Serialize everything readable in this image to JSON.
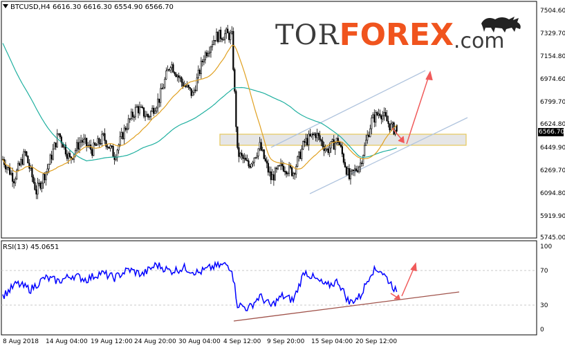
{
  "header": {
    "symbol_info": "BTCUSD,H4  6616.30 6616.30 6554.90 6566.70",
    "rsi_info": "RSI(13) 45.0651"
  },
  "logo": {
    "part1": "TOR",
    "part2": "FOREX",
    "part3": ".com"
  },
  "price_axis": {
    "labels": [
      "7504.60",
      "7329.70",
      "7154.80",
      "6974.60",
      "6799.70",
      "6624.80",
      "6449.90",
      "6269.70",
      "6094.80",
      "5919.90",
      "5745.00"
    ],
    "current_price": "6566.70"
  },
  "rsi_axis": {
    "labels": [
      "100",
      "70",
      "30",
      "0"
    ]
  },
  "time_axis": {
    "labels": [
      "8 Aug 2018",
      "14 Aug 04:00",
      "19 Aug 12:00",
      "24 Aug 20:00",
      "30 Aug 04:00",
      "4 Sep 12:00",
      "9 Sep 20:00",
      "15 Sep 04:00",
      "20 Sep 12:00"
    ]
  },
  "colors": {
    "candles": "#000000",
    "ma_fast": "#e0a020",
    "ma_slow": "#20b0a0",
    "rsi": "#0000ff",
    "channel": "#b0c4de",
    "support_zone": "#e6e6e6",
    "support_border": "#e6c85a",
    "arrows": "#f05a5a",
    "rsi_trend": "#a0524a",
    "accent_orange": "#f0541e"
  },
  "icons": {
    "brand": "bull-icon",
    "dropdown": "triangle-down-icon"
  },
  "chart_data": {
    "type": "candlestick",
    "title": "BTCUSD,H4",
    "ylim": [
      5745.0,
      7504.6
    ],
    "rsi_ylim": [
      0,
      100
    ],
    "rsi_levels": [
      70,
      30
    ],
    "last": {
      "open": 6616.3,
      "high": 6616.3,
      "low": 6554.9,
      "close": 6566.7
    },
    "rsi_last": 45.0651,
    "anchors": [
      [
        0,
        6350
      ],
      [
        8,
        6200
      ],
      [
        16,
        6400
      ],
      [
        24,
        6100
      ],
      [
        32,
        6280
      ],
      [
        40,
        6550
      ],
      [
        48,
        6350
      ],
      [
        56,
        6500
      ],
      [
        64,
        6420
      ],
      [
        72,
        6520
      ],
      [
        80,
        6380
      ],
      [
        88,
        6600
      ],
      [
        96,
        6750
      ],
      [
        104,
        6680
      ],
      [
        112,
        6820
      ],
      [
        120,
        7100
      ],
      [
        128,
        6950
      ],
      [
        136,
        6850
      ],
      [
        144,
        7150
      ],
      [
        152,
        7300
      ],
      [
        160,
        7320
      ],
      [
        164,
        7300
      ],
      [
        168,
        6400
      ],
      [
        176,
        6300
      ],
      [
        184,
        6450
      ],
      [
        192,
        6200
      ],
      [
        200,
        6300
      ],
      [
        208,
        6250
      ],
      [
        216,
        6480
      ],
      [
        224,
        6550
      ],
      [
        232,
        6420
      ],
      [
        240,
        6500
      ],
      [
        248,
        6200
      ],
      [
        256,
        6320
      ],
      [
        264,
        6650
      ],
      [
        270,
        6720
      ],
      [
        278,
        6600
      ],
      [
        282,
        6566.7
      ]
    ],
    "rsi_anchors": [
      [
        0,
        40
      ],
      [
        10,
        55
      ],
      [
        20,
        48
      ],
      [
        30,
        62
      ],
      [
        40,
        58
      ],
      [
        50,
        65
      ],
      [
        60,
        60
      ],
      [
        70,
        68
      ],
      [
        80,
        62
      ],
      [
        90,
        72
      ],
      [
        100,
        66
      ],
      [
        110,
        78
      ],
      [
        120,
        70
      ],
      [
        130,
        74
      ],
      [
        140,
        68
      ],
      [
        150,
        75
      ],
      [
        160,
        78
      ],
      [
        164,
        73
      ],
      [
        168,
        30
      ],
      [
        176,
        25
      ],
      [
        184,
        40
      ],
      [
        192,
        28
      ],
      [
        200,
        40
      ],
      [
        208,
        35
      ],
      [
        216,
        70
      ],
      [
        224,
        60
      ],
      [
        232,
        52
      ],
      [
        240,
        58
      ],
      [
        248,
        32
      ],
      [
        256,
        40
      ],
      [
        264,
        70
      ],
      [
        270,
        72
      ],
      [
        278,
        55
      ],
      [
        282,
        45.07
      ]
    ]
  }
}
